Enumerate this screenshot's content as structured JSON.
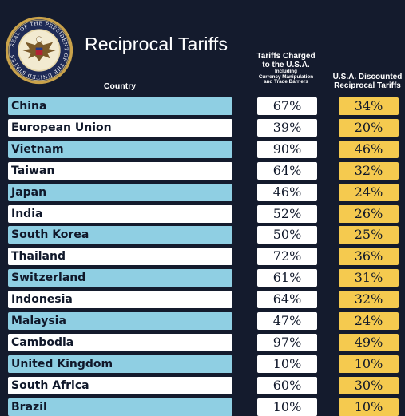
{
  "header": {
    "title": "Reciprocal Tariffs",
    "country_label": "Country",
    "charged_line1": "Tariffs Charged",
    "charged_line2": "to the U.S.A.",
    "charged_note1": "Including",
    "charged_note2": "Currency Manipulation",
    "charged_note3": "and Trade Barriers",
    "discounted_line1": "U.S.A. Discounted",
    "discounted_line2": "Reciprocal Tariffs",
    "seal_text": "SEAL OF THE PRESIDENT OF THE UNITED STATES"
  },
  "colors": {
    "background": "#141b2d",
    "row_blue": "#8fcfe3",
    "row_white": "#ffffff",
    "discount_gold": "#f5ca4f"
  },
  "rows": [
    {
      "country": "China",
      "charged": "67%",
      "discounted": "34%",
      "shade": "blue"
    },
    {
      "country": "European Union",
      "charged": "39%",
      "discounted": "20%",
      "shade": "white"
    },
    {
      "country": "Vietnam",
      "charged": "90%",
      "discounted": "46%",
      "shade": "blue"
    },
    {
      "country": "Taiwan",
      "charged": "64%",
      "discounted": "32%",
      "shade": "white"
    },
    {
      "country": "Japan",
      "charged": "46%",
      "discounted": "24%",
      "shade": "blue"
    },
    {
      "country": "India",
      "charged": "52%",
      "discounted": "26%",
      "shade": "white"
    },
    {
      "country": "South Korea",
      "charged": "50%",
      "discounted": "25%",
      "shade": "blue"
    },
    {
      "country": "Thailand",
      "charged": "72%",
      "discounted": "36%",
      "shade": "white"
    },
    {
      "country": "Switzerland",
      "charged": "61%",
      "discounted": "31%",
      "shade": "blue"
    },
    {
      "country": "Indonesia",
      "charged": "64%",
      "discounted": "32%",
      "shade": "white"
    },
    {
      "country": "Malaysia",
      "charged": "47%",
      "discounted": "24%",
      "shade": "blue"
    },
    {
      "country": "Cambodia",
      "charged": "97%",
      "discounted": "49%",
      "shade": "white"
    },
    {
      "country": "United Kingdom",
      "charged": "10%",
      "discounted": "10%",
      "shade": "blue"
    },
    {
      "country": "South Africa",
      "charged": "60%",
      "discounted": "30%",
      "shade": "white"
    },
    {
      "country": "Brazil",
      "charged": "10%",
      "discounted": "10%",
      "shade": "blue"
    }
  ]
}
